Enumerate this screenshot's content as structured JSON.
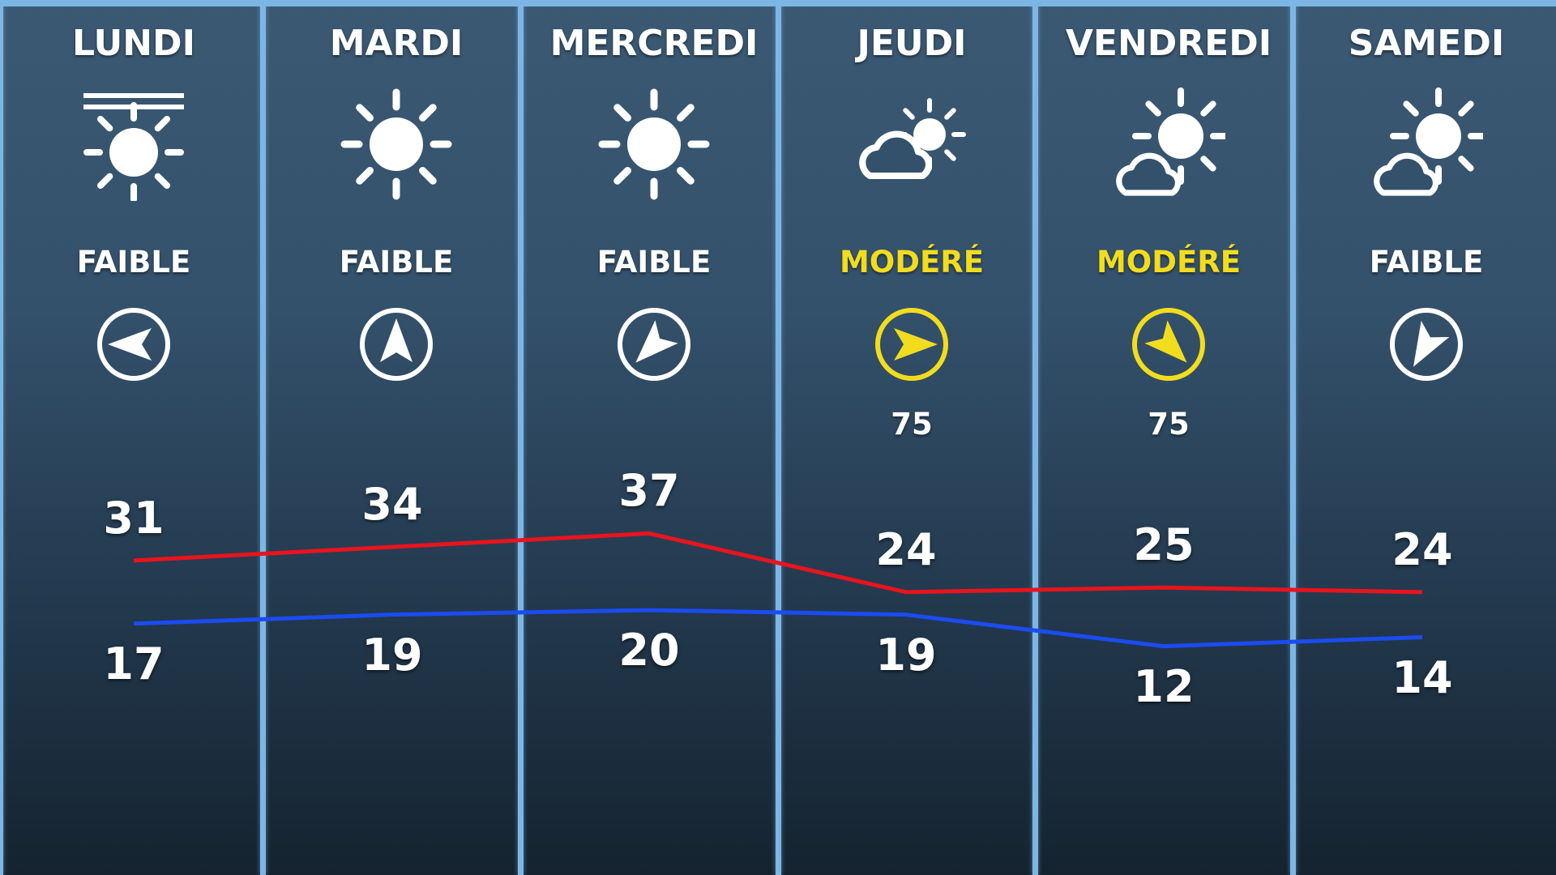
{
  "colors": {
    "high_line": "#e8141e",
    "low_line": "#1a4cf0",
    "moderate": "#f2dc1e",
    "weak": "#ffffff",
    "divider": "#7cb6e4"
  },
  "days": [
    {
      "name": "LUNDI",
      "weather_icon": "sun-haze-icon",
      "wind_label": "FAIBLE",
      "wind_level": "weak",
      "wind_direction_deg": 270,
      "gust": "",
      "high": 31,
      "low": 17
    },
    {
      "name": "MARDI",
      "weather_icon": "sun-icon",
      "wind_label": "FAIBLE",
      "wind_level": "weak",
      "wind_direction_deg": 0,
      "gust": "",
      "high": 34,
      "low": 19
    },
    {
      "name": "MERCREDI",
      "weather_icon": "sun-icon",
      "wind_label": "FAIBLE",
      "wind_level": "weak",
      "wind_direction_deg": 225,
      "gust": "",
      "high": 37,
      "low": 20
    },
    {
      "name": "JEUDI",
      "weather_icon": "cloud-sun-icon",
      "wind_label": "MODÉRÉ",
      "wind_level": "moderate",
      "wind_direction_deg": 90,
      "gust": "75",
      "high": 24,
      "low": 19
    },
    {
      "name": "VENDREDI",
      "weather_icon": "sun-cloud-icon",
      "wind_label": "MODÉRÉ",
      "wind_level": "moderate",
      "wind_direction_deg": 135,
      "gust": "75",
      "high": 25,
      "low": 12
    },
    {
      "name": "SAMEDI",
      "weather_icon": "sun-cloud-icon",
      "wind_label": "FAIBLE",
      "wind_level": "weak",
      "wind_direction_deg": 210,
      "gust": "",
      "high": 24,
      "low": 14
    }
  ]
}
